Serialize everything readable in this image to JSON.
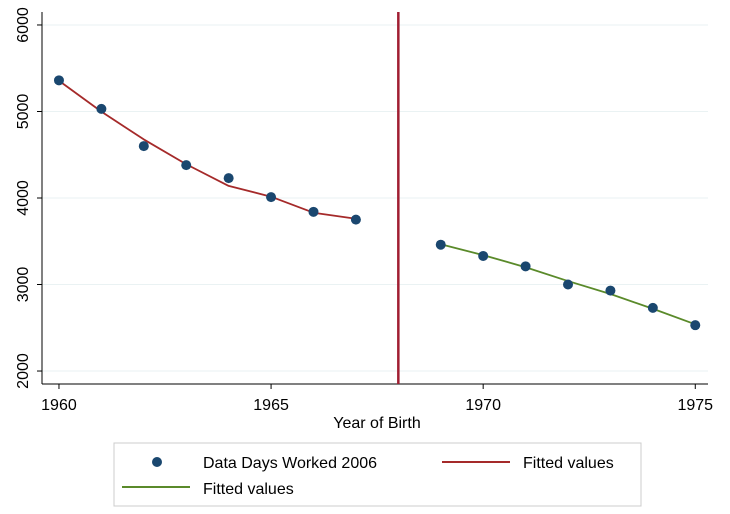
{
  "chart_data": {
    "type": "scatter",
    "xlabel": "Year of Birth",
    "ylabel": "",
    "xlim": [
      1959.6,
      1975.3
    ],
    "ylim": [
      1850,
      6150
    ],
    "x_ticks": [
      "1960",
      "1965",
      "1970",
      "1975"
    ],
    "y_ticks": [
      "2000",
      "3000",
      "4000",
      "5000",
      "6000"
    ],
    "grid": "horizontal",
    "cutoff_line": {
      "x": 1968,
      "color": "#a01e32"
    },
    "series": [
      {
        "name": "Data Days Worked 2006",
        "kind": "scatter",
        "color": "#1a476f",
        "x": [
          1960,
          1961,
          1962,
          1963,
          1964,
          1965,
          1966,
          1967,
          1969,
          1970,
          1971,
          1972,
          1973,
          1974,
          1975
        ],
        "y": [
          5360,
          5030,
          4600,
          4380,
          4230,
          4010,
          3840,
          3750,
          3460,
          3330,
          3210,
          3000,
          2930,
          2730,
          2530
        ]
      },
      {
        "name": "Fitted values",
        "kind": "line",
        "color": "#a52a2a",
        "x": [
          1960,
          1961,
          1962,
          1963,
          1964,
          1965,
          1966,
          1967
        ],
        "y": [
          5355,
          4998,
          4677,
          4390,
          4140,
          4015,
          3830,
          3760
        ]
      },
      {
        "name": "Fitted values",
        "kind": "line",
        "color": "#5a8a2a",
        "x": [
          1969,
          1970,
          1971,
          1972,
          1973,
          1974,
          1975
        ],
        "y": [
          3465,
          3340,
          3200,
          3040,
          2890,
          2720,
          2540
        ]
      }
    ],
    "legend": {
      "placement": "bottom",
      "entries": [
        {
          "label": "Data Days Worked 2006",
          "kind": "marker",
          "color": "#1a476f"
        },
        {
          "label": "Fitted values",
          "kind": "line",
          "color": "#a52a2a"
        },
        {
          "label": "Fitted values",
          "kind": "line",
          "color": "#5a8a2a"
        }
      ]
    }
  }
}
